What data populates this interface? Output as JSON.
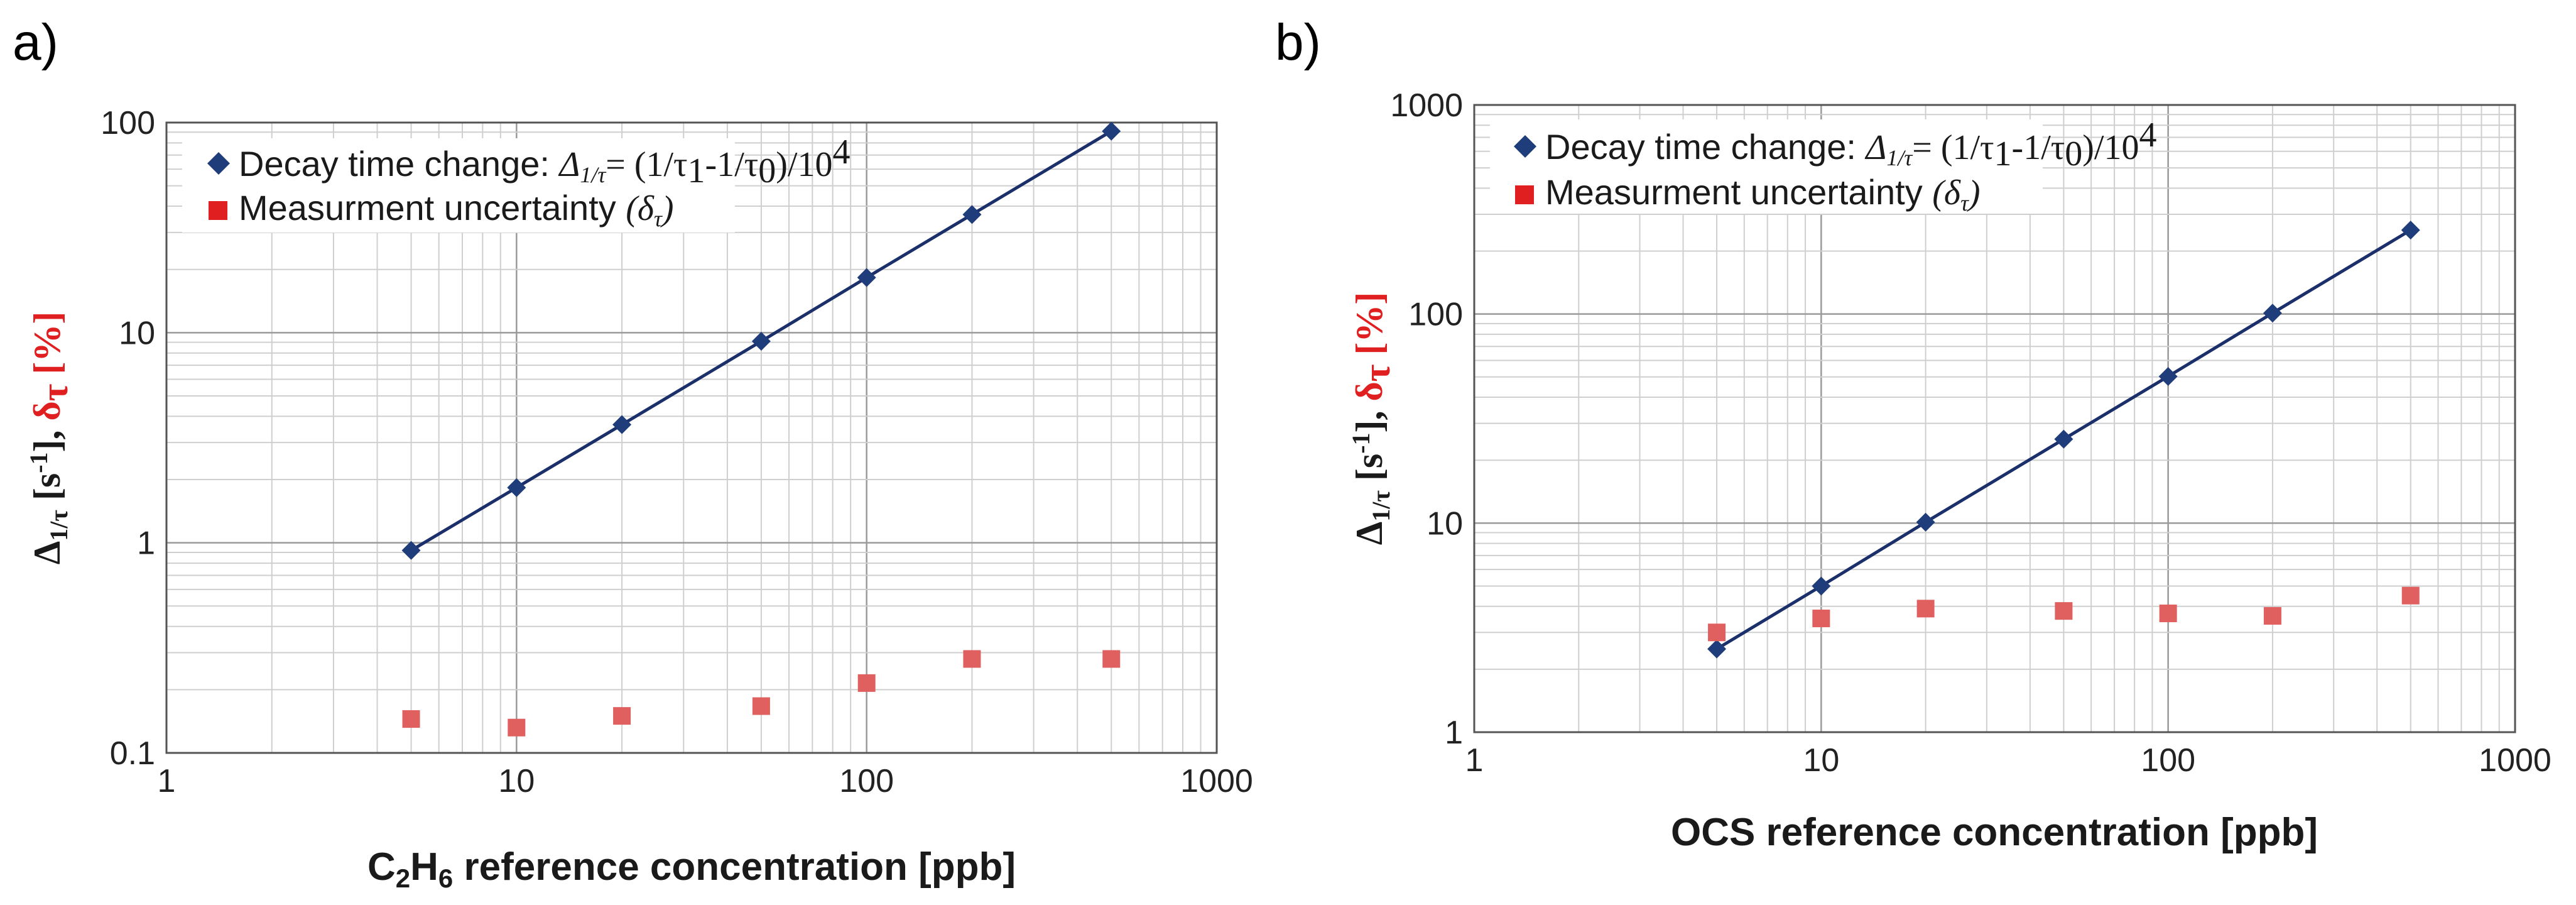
{
  "chart_data": [
    {
      "panel_label": "a)",
      "type": "scatter",
      "xscale": "log",
      "yscale": "log",
      "xlim": [
        1,
        1000
      ],
      "ylim": [
        0.1,
        100
      ],
      "xticks": [
        1,
        10,
        100,
        1000
      ],
      "xtick_labels": [
        "1",
        "10",
        "100",
        "1000"
      ],
      "yticks": [
        0.1,
        1,
        10,
        100
      ],
      "ytick_labels": [
        "0.1",
        "1",
        "10",
        "100"
      ],
      "xlabel_main": "C",
      "xlabel_sub1": "2",
      "xlabel_mid": "H",
      "xlabel_sub2": "6",
      "xlabel_rest": " reference concentration [ppb]",
      "ylabel_delta": "Δ",
      "ylabel_delta_sub": "1/τ",
      "ylabel_units": " [s",
      "ylabel_exp": "-1",
      "ylabel_close": "], ",
      "ylabel_delta2": "δ",
      "ylabel_delta2_sub": "τ",
      "ylabel_pct": " [%]",
      "legend": {
        "s1_label": "Decay time change: ",
        "s1_formula_lhs": "Δ",
        "s1_formula_lhs_sub": "1/τ",
        "s1_formula_eq": "= (1/τ",
        "s1_sub1": "1",
        "s1_mid": "-1/τ",
        "s1_sub0": "0",
        "s1_end": ")/10",
        "s1_exp": "4",
        "s2_label": "Measurment uncertainty ",
        "s2_paren_open": "(δ",
        "s2_paren_sub": "τ",
        "s2_paren_close": ")"
      },
      "series": [
        {
          "name": "Decay time change",
          "marker": "diamond",
          "color": "#1f3d7a",
          "line": true,
          "x": [
            5,
            10,
            20,
            50,
            100,
            200,
            500
          ],
          "y": [
            0.92,
            1.83,
            3.65,
            9.1,
            18.3,
            36.5,
            91
          ]
        },
        {
          "name": "Measurment uncertainty",
          "marker": "square",
          "color": "#e06060",
          "line": false,
          "x": [
            5,
            10,
            20,
            50,
            100,
            200,
            500
          ],
          "y": [
            0.145,
            0.132,
            0.15,
            0.167,
            0.215,
            0.28,
            0.28
          ]
        }
      ]
    },
    {
      "panel_label": "b)",
      "type": "scatter",
      "xscale": "log",
      "yscale": "log",
      "xlim": [
        1,
        1000
      ],
      "ylim": [
        1,
        1000
      ],
      "xticks": [
        1,
        10,
        100,
        1000
      ],
      "xtick_labels": [
        "1",
        "10",
        "100",
        "1000"
      ],
      "yticks": [
        1,
        10,
        100,
        1000
      ],
      "ytick_labels": [
        "1",
        "10",
        "100",
        "1000"
      ],
      "xlabel_main": "OCS reference concentration [ppb]",
      "ylabel_delta": "Δ",
      "ylabel_delta_sub": "1/τ",
      "ylabel_units": " [s",
      "ylabel_exp": "-1",
      "ylabel_close": "], ",
      "ylabel_delta2": "δ",
      "ylabel_delta2_sub": "τ",
      "ylabel_pct": " [%]",
      "legend": {
        "s1_label": "Decay time change: ",
        "s1_formula_lhs": "Δ",
        "s1_formula_lhs_sub": "1/τ",
        "s1_formula_eq": "= (1/τ",
        "s1_sub1": "1",
        "s1_mid": "-1/τ",
        "s1_sub0": "0",
        "s1_end": ")/10",
        "s1_exp": "4",
        "s2_label": "Measurment uncertainty ",
        "s2_paren_open": "(δ",
        "s2_paren_sub": "τ",
        "s2_paren_close": ")"
      },
      "series": [
        {
          "name": "Decay time change",
          "marker": "diamond",
          "color": "#1f3d7a",
          "line": true,
          "x": [
            5,
            10,
            20,
            50,
            100,
            200,
            500
          ],
          "y": [
            2.5,
            5.0,
            10.1,
            25.2,
            50.3,
            101,
            252
          ]
        },
        {
          "name": "Measurment uncertainty",
          "marker": "square",
          "color": "#e06060",
          "line": false,
          "x": [
            5,
            10,
            20,
            50,
            100,
            200,
            500
          ],
          "y": [
            3.0,
            3.5,
            3.9,
            3.8,
            3.7,
            3.6,
            4.5
          ]
        }
      ]
    }
  ]
}
